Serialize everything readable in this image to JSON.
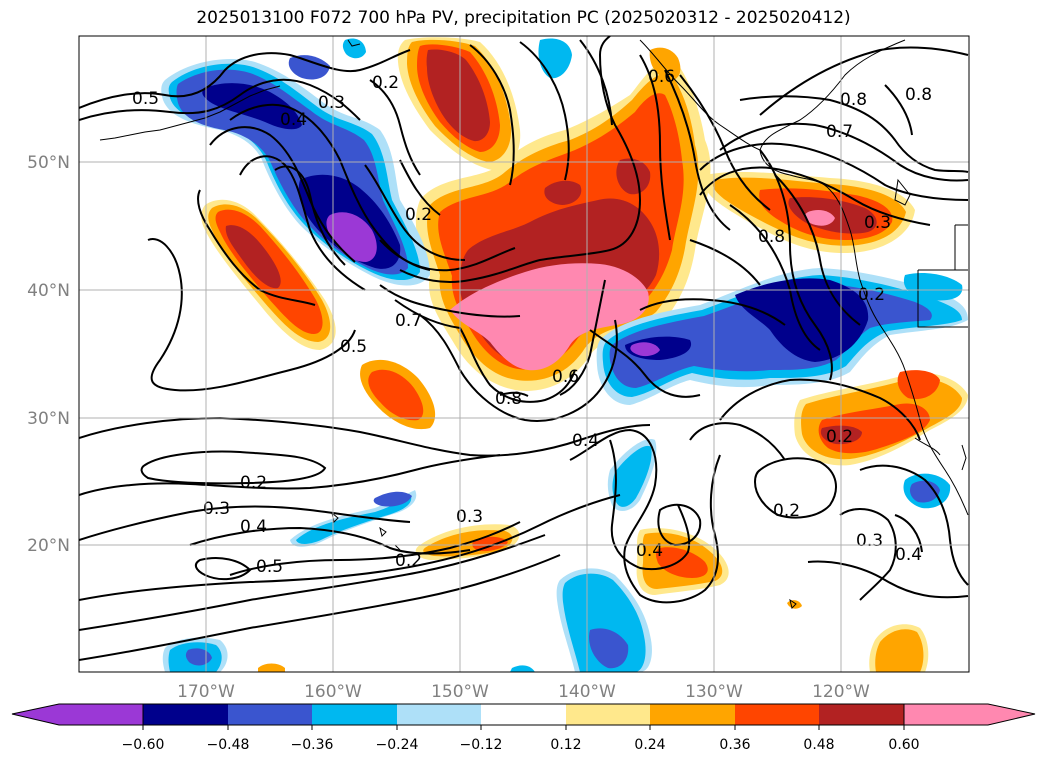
{
  "title": "2025013100 F072 700 hPa PV, precipitation PC (2025020312 - 2025020412)",
  "latitude_labels": [
    "50°N",
    "40°N",
    "30°N",
    "20°N"
  ],
  "longitude_labels": [
    "170°W",
    "160°W",
    "150°W",
    "140°W",
    "130°W",
    "120°W"
  ],
  "colorbar": {
    "tick_labels": [
      "−0.60",
      "−0.48",
      "−0.36",
      "−0.24",
      "−0.12",
      "0.12",
      "0.24",
      "0.36",
      "0.48",
      "0.60"
    ],
    "colors": [
      "#9b38d6",
      "#00008c",
      "#3a55cf",
      "#00b8f0",
      "#aee0f8",
      "#ffffff",
      "#ffe88c",
      "#ffa500",
      "#ff4500",
      "#b22222",
      "#ff88b0",
      "#ff88b0"
    ]
  },
  "contour_labels": [
    {
      "text": "0.5",
      "id": "a"
    },
    {
      "text": "0.3",
      "id": "b"
    },
    {
      "text": "0.4",
      "id": "c"
    },
    {
      "text": "0.2",
      "id": "d"
    },
    {
      "text": "0.2",
      "id": "e"
    },
    {
      "text": "0.7",
      "id": "f"
    },
    {
      "text": "0.5",
      "id": "g"
    },
    {
      "text": "0.8",
      "id": "h"
    },
    {
      "text": "0.6",
      "id": "i"
    },
    {
      "text": "0.4",
      "id": "j"
    },
    {
      "text": "0.7",
      "id": "k"
    },
    {
      "text": "0.8",
      "id": "l"
    },
    {
      "text": "0.8",
      "id": "m"
    },
    {
      "text": "0.8",
      "id": "n"
    },
    {
      "text": "0.3",
      "id": "o"
    },
    {
      "text": "0.2",
      "id": "p"
    },
    {
      "text": "0.2",
      "id": "q"
    },
    {
      "text": "0.2",
      "id": "r"
    },
    {
      "text": "0.3",
      "id": "s"
    },
    {
      "text": "0.4",
      "id": "t"
    },
    {
      "text": "0.5",
      "id": "u"
    },
    {
      "text": "0.3",
      "id": "v"
    },
    {
      "text": "0.2",
      "id": "w"
    },
    {
      "text": "0.4",
      "id": "x"
    },
    {
      "text": "0.2",
      "id": "y"
    },
    {
      "text": "0.3",
      "id": "z"
    },
    {
      "text": "0.4",
      "id": "aa"
    },
    {
      "text": "0.6",
      "id": "ab"
    }
  ]
}
